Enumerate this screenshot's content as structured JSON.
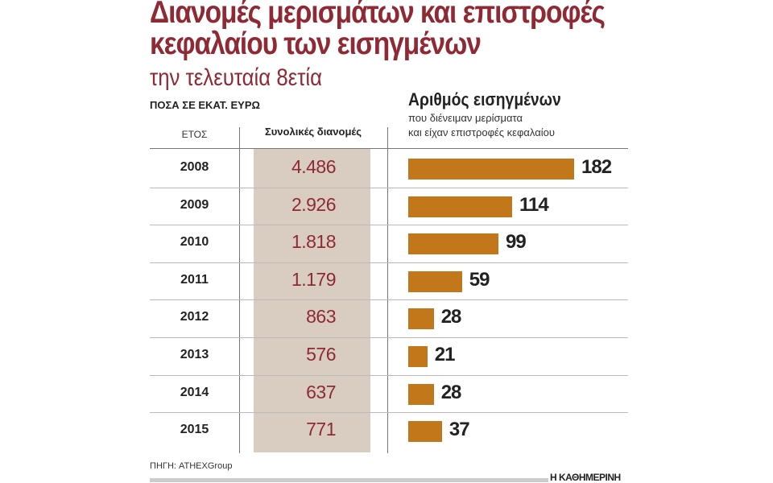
{
  "header": {
    "title_line1": "Διανομές μερισμάτων και επιστροφές",
    "title_line2": "κεφαλαίου των εισηγμένων",
    "subtitle": "την τελευταία 8ετία",
    "units": "ΠΟΣΑ ΣΕ ΕΚΑΤ. ΕΥΡΩ"
  },
  "chart_data": {
    "type": "table",
    "columns": [
      "ΕΤΟΣ",
      "Συνολικές διανομές",
      "Αριθμός εισηγμένων"
    ],
    "bar_title": "Αριθμός εισηγμένων",
    "bar_subtitle_line1": "που διένειμαν μερίσματα",
    "bar_subtitle_line2": "και είχαν επιστροφές κεφαλαίου",
    "categories": [
      "2008",
      "2009",
      "2010",
      "2011",
      "2012",
      "2013",
      "2014",
      "2015"
    ],
    "totals": [
      "4.486",
      "2.926",
      "1.818",
      "1.179",
      "863",
      "576",
      "637",
      "771"
    ],
    "values": [
      182,
      114,
      99,
      59,
      28,
      21,
      28,
      37
    ],
    "bar_color": "#c2771a",
    "highlight_color": "#d9cdc1",
    "accent_color": "#8f2a35"
  },
  "footer": {
    "source": "ΠΗΓΗ: ATHEXGroup",
    "brand": "Η ΚΑΘΗΜΕΡΙΝΗ"
  }
}
